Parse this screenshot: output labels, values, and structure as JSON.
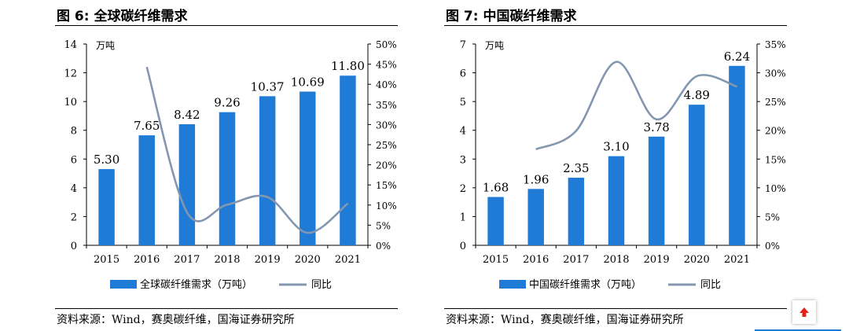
{
  "page": {
    "accent_color": "#1f7bd6",
    "line_color": "#8497b0",
    "scroll_icon": "arrow-up-icon"
  },
  "left": {
    "title": "图 6:  全球碳纤维需求",
    "source": "资料来源：Wind，赛奥碳纤维，国海证券研究所"
  },
  "right": {
    "title": "图 7:  中国碳纤维需求",
    "source": "资料来源：Wind，赛奥碳纤维，国海证券研究所"
  },
  "chart_data": [
    {
      "type": "bar",
      "title": "图 6:  全球碳纤维需求",
      "unit_label": "万吨",
      "categories": [
        "2015",
        "2016",
        "2017",
        "2018",
        "2019",
        "2020",
        "2021"
      ],
      "series": [
        {
          "name": "全球碳纤维需求（万吨）",
          "type": "bar",
          "axis": "left",
          "values": [
            5.3,
            7.65,
            8.42,
            9.26,
            10.37,
            10.69,
            11.8
          ],
          "labels": [
            "5.30",
            "7.65",
            "8.42",
            "9.26",
            "10.37",
            "10.69",
            "11.80"
          ]
        },
        {
          "name": "同比",
          "type": "line",
          "axis": "right",
          "values": [
            null,
            44.3,
            8.2,
            10.1,
            12.0,
            3.1,
            10.4
          ]
        }
      ],
      "ylim_left": [
        0,
        14
      ],
      "yticks_left": [
        "0",
        "2",
        "4",
        "6",
        "8",
        "10",
        "12",
        "14"
      ],
      "ylim_right": [
        0,
        50
      ],
      "yticks_right": [
        "0%",
        "5%",
        "10%",
        "15%",
        "20%",
        "25%",
        "30%",
        "35%",
        "40%",
        "45%",
        "50%"
      ],
      "legend": "bottom",
      "grid": false
    },
    {
      "type": "bar",
      "title": "图 7:  中国碳纤维需求",
      "unit_label": "万吨",
      "categories": [
        "2015",
        "2016",
        "2017",
        "2018",
        "2019",
        "2020",
        "2021"
      ],
      "series": [
        {
          "name": "中国碳纤维需求（万吨）",
          "type": "bar",
          "axis": "left",
          "values": [
            1.68,
            1.96,
            2.35,
            3.1,
            3.78,
            4.89,
            6.24
          ],
          "labels": [
            "1.68",
            "1.96",
            "2.35",
            "3.10",
            "3.78",
            "4.89",
            "6.24"
          ]
        },
        {
          "name": "同比",
          "type": "line",
          "axis": "right",
          "values": [
            null,
            16.7,
            19.9,
            31.9,
            21.9,
            29.4,
            27.6
          ]
        }
      ],
      "ylim_left": [
        0,
        7
      ],
      "yticks_left": [
        "0",
        "1",
        "2",
        "3",
        "4",
        "5",
        "6",
        "7"
      ],
      "ylim_right": [
        0,
        35
      ],
      "yticks_right": [
        "0%",
        "5%",
        "10%",
        "15%",
        "20%",
        "25%",
        "30%",
        "35%"
      ],
      "legend": "bottom",
      "grid": false
    }
  ]
}
